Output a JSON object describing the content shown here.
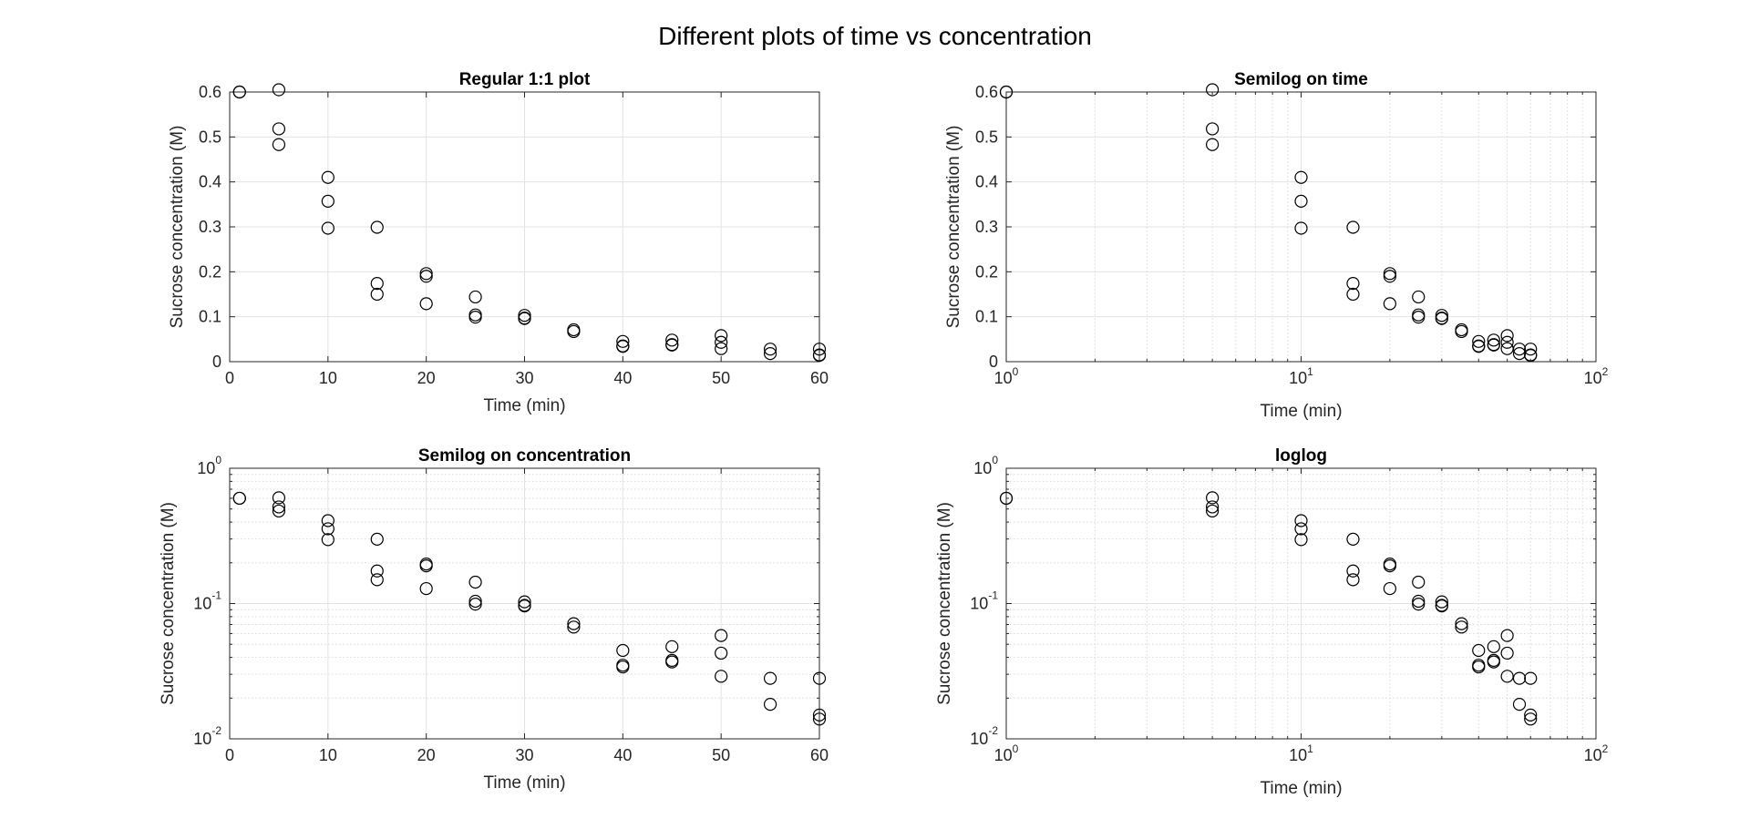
{
  "figure": {
    "title": "Different plots of time vs concentration"
  },
  "chart_data": [
    {
      "type": "scatter",
      "title": "Regular 1:1 plot",
      "xlabel": "Time (min)",
      "ylabel": "Sucrose concentration (M)",
      "xscale": "linear",
      "yscale": "linear",
      "xlim": [
        0,
        60
      ],
      "ylim": [
        0,
        0.6
      ],
      "xticks": [
        0,
        10,
        20,
        30,
        40,
        50,
        60
      ],
      "xtick_labels": [
        "0",
        "10",
        "20",
        "30",
        "40",
        "50",
        "60"
      ],
      "yticks": [
        0,
        0.1,
        0.2,
        0.3,
        0.4,
        0.5,
        0.6
      ],
      "ytick_labels": [
        "0",
        "0.1",
        "0.2",
        "0.3",
        "0.4",
        "0.5",
        "0.6"
      ],
      "grid": "major",
      "marker": "circle-open",
      "color": "#000000",
      "x": [
        1,
        1,
        5,
        5,
        5,
        10,
        10,
        10,
        15,
        15,
        15,
        20,
        20,
        20,
        25,
        25,
        25,
        30,
        30,
        30,
        35,
        35,
        40,
        40,
        40,
        45,
        45,
        45,
        50,
        50,
        50,
        55,
        55,
        60,
        60,
        60
      ],
      "y": [
        0.6,
        0.6,
        0.605,
        0.518,
        0.483,
        0.41,
        0.357,
        0.297,
        0.299,
        0.174,
        0.15,
        0.196,
        0.19,
        0.129,
        0.144,
        0.104,
        0.099,
        0.103,
        0.097,
        0.096,
        0.071,
        0.067,
        0.045,
        0.035,
        0.034,
        0.048,
        0.038,
        0.037,
        0.058,
        0.043,
        0.029,
        0.028,
        0.018,
        0.028,
        0.015,
        0.014
      ]
    },
    {
      "type": "scatter",
      "title": "Semilog on time",
      "xlabel": "Time (min)",
      "ylabel": "Sucrose concentration (M)",
      "xscale": "log",
      "yscale": "linear",
      "xlim": [
        1,
        100
      ],
      "ylim": [
        0,
        0.6
      ],
      "xticks": [
        1,
        10,
        100
      ],
      "xtick_labels": [
        "10^0",
        "10^1",
        "10^2"
      ],
      "yticks": [
        0,
        0.1,
        0.2,
        0.3,
        0.4,
        0.5,
        0.6
      ],
      "ytick_labels": [
        "0",
        "0.1",
        "0.2",
        "0.3",
        "0.4",
        "0.5",
        "0.6"
      ],
      "grid": "major+minor",
      "marker": "circle-open",
      "color": "#000000",
      "x": [
        1,
        1,
        5,
        5,
        5,
        10,
        10,
        10,
        15,
        15,
        15,
        20,
        20,
        20,
        25,
        25,
        25,
        30,
        30,
        30,
        35,
        35,
        40,
        40,
        40,
        45,
        45,
        45,
        50,
        50,
        50,
        55,
        55,
        60,
        60,
        60
      ],
      "y": [
        0.6,
        0.6,
        0.605,
        0.518,
        0.483,
        0.41,
        0.357,
        0.297,
        0.299,
        0.174,
        0.15,
        0.196,
        0.19,
        0.129,
        0.144,
        0.104,
        0.099,
        0.103,
        0.097,
        0.096,
        0.071,
        0.067,
        0.045,
        0.035,
        0.034,
        0.048,
        0.038,
        0.037,
        0.058,
        0.043,
        0.029,
        0.028,
        0.018,
        0.028,
        0.015,
        0.014
      ]
    },
    {
      "type": "scatter",
      "title": "Semilog on concentration",
      "xlabel": "Time (min)",
      "ylabel": "Sucrose concentration (M)",
      "xscale": "linear",
      "yscale": "log",
      "xlim": [
        0,
        60
      ],
      "ylim": [
        0.01,
        1
      ],
      "xticks": [
        0,
        10,
        20,
        30,
        40,
        50,
        60
      ],
      "xtick_labels": [
        "0",
        "10",
        "20",
        "30",
        "40",
        "50",
        "60"
      ],
      "yticks": [
        0.01,
        0.1,
        1
      ],
      "ytick_labels": [
        "10^-2",
        "10^-1",
        "10^0"
      ],
      "grid": "major+minor",
      "marker": "circle-open",
      "color": "#000000",
      "x": [
        1,
        1,
        5,
        5,
        5,
        10,
        10,
        10,
        15,
        15,
        15,
        20,
        20,
        20,
        25,
        25,
        25,
        30,
        30,
        30,
        35,
        35,
        40,
        40,
        40,
        45,
        45,
        45,
        50,
        50,
        50,
        55,
        55,
        60,
        60,
        60
      ],
      "y": [
        0.6,
        0.6,
        0.605,
        0.518,
        0.483,
        0.41,
        0.357,
        0.297,
        0.299,
        0.174,
        0.15,
        0.196,
        0.19,
        0.129,
        0.144,
        0.104,
        0.099,
        0.103,
        0.097,
        0.096,
        0.071,
        0.067,
        0.045,
        0.035,
        0.034,
        0.048,
        0.038,
        0.037,
        0.058,
        0.043,
        0.029,
        0.028,
        0.018,
        0.028,
        0.015,
        0.014
      ]
    },
    {
      "type": "scatter",
      "title": "loglog",
      "xlabel": "Time (min)",
      "ylabel": "Sucrose concentration (M)",
      "xscale": "log",
      "yscale": "log",
      "xlim": [
        1,
        100
      ],
      "ylim": [
        0.01,
        1
      ],
      "xticks": [
        1,
        10,
        100
      ],
      "xtick_labels": [
        "10^0",
        "10^1",
        "10^2"
      ],
      "yticks": [
        0.01,
        0.1,
        1
      ],
      "ytick_labels": [
        "10^-2",
        "10^-1",
        "10^0"
      ],
      "grid": "major+minor",
      "marker": "circle-open",
      "color": "#000000",
      "x": [
        1,
        1,
        5,
        5,
        5,
        10,
        10,
        10,
        15,
        15,
        15,
        20,
        20,
        20,
        25,
        25,
        25,
        30,
        30,
        30,
        35,
        35,
        40,
        40,
        40,
        45,
        45,
        45,
        50,
        50,
        50,
        55,
        55,
        60,
        60,
        60
      ],
      "y": [
        0.6,
        0.6,
        0.605,
        0.518,
        0.483,
        0.41,
        0.357,
        0.297,
        0.299,
        0.174,
        0.15,
        0.196,
        0.19,
        0.129,
        0.144,
        0.104,
        0.099,
        0.103,
        0.097,
        0.096,
        0.071,
        0.067,
        0.045,
        0.035,
        0.034,
        0.048,
        0.038,
        0.037,
        0.058,
        0.043,
        0.029,
        0.028,
        0.018,
        0.028,
        0.015,
        0.014
      ]
    }
  ]
}
